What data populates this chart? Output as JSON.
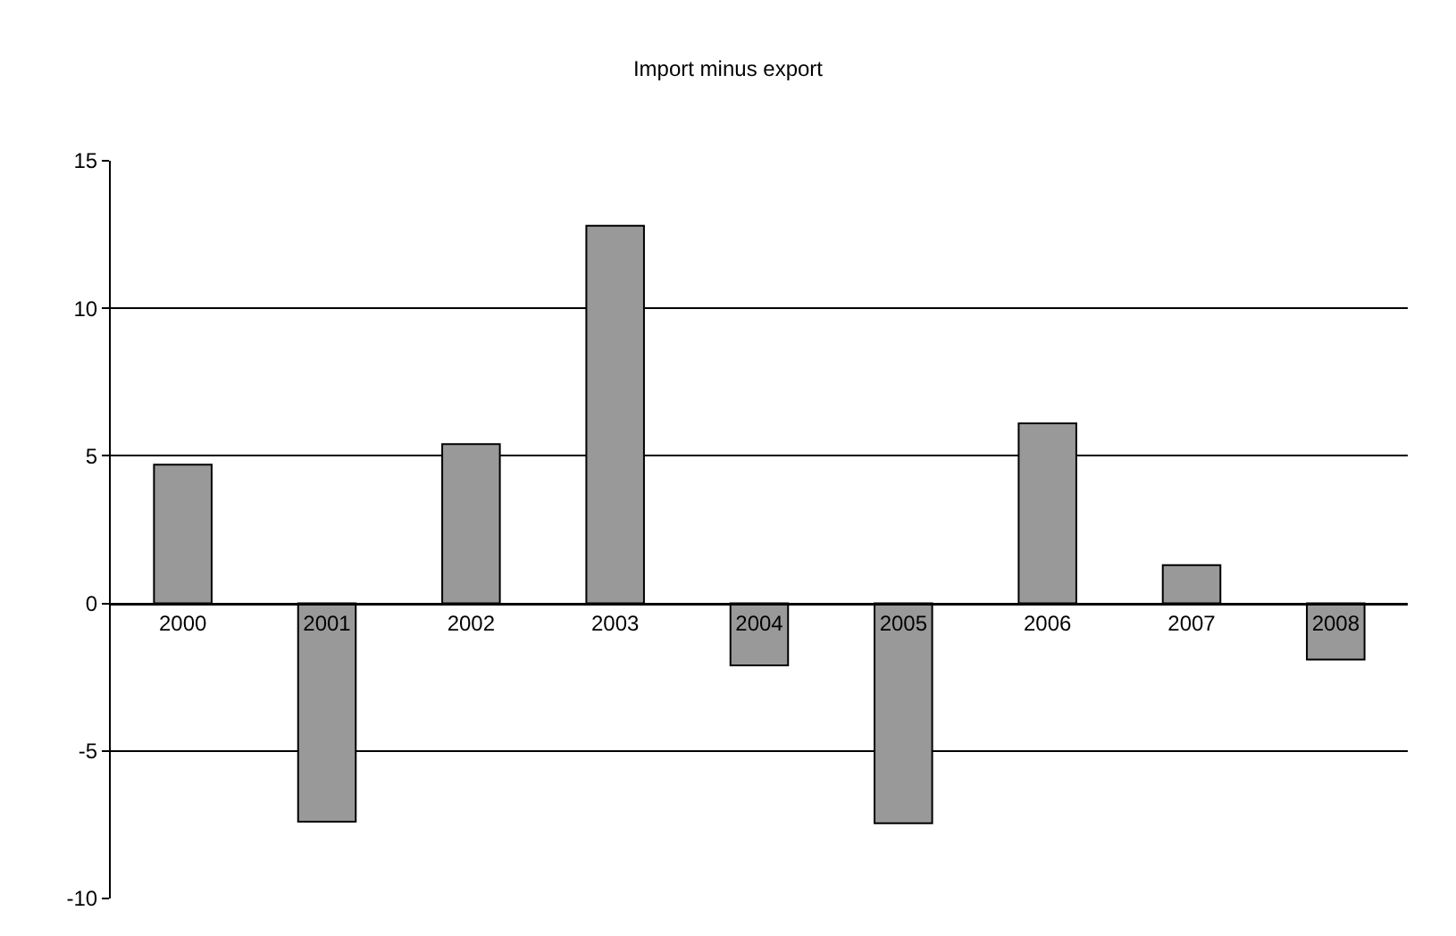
{
  "chart_data": {
    "type": "bar",
    "title": "Import minus export",
    "categories": [
      "2000",
      "2001",
      "2002",
      "2003",
      "2004",
      "2005",
      "2006",
      "2007",
      "2008"
    ],
    "values": [
      4.7,
      -7.4,
      5.4,
      12.8,
      -2.1,
      -7.45,
      6.1,
      1.3,
      -1.9
    ],
    "color": "#999999",
    "ylim": [
      -10,
      15
    ],
    "yticks": [
      -10,
      -5,
      0,
      5,
      10,
      15
    ],
    "grid": "y"
  }
}
